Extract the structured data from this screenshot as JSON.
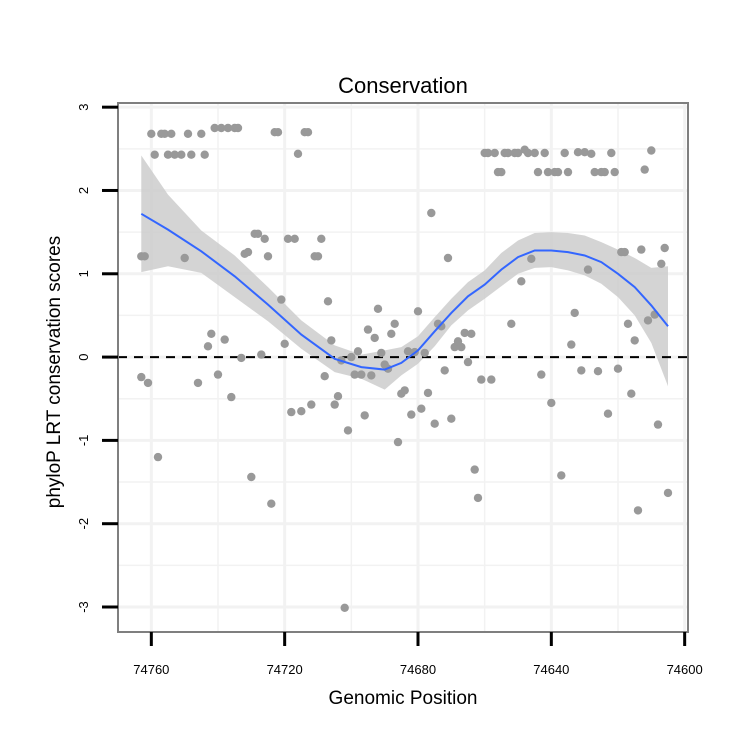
{
  "chart_data": {
    "type": "scatter",
    "title": "Conservation",
    "xlabel": "Genomic Position",
    "ylabel": "phyloP LRT conservation scores",
    "x_reversed": true,
    "xlim": [
      74770,
      74599
    ],
    "ylim": [
      -3.3,
      3.05
    ],
    "x_ticks": [
      74760,
      74720,
      74680,
      74640,
      74600
    ],
    "x_tick_labels": [
      "74760",
      "74720",
      "74680",
      "74640",
      "74600"
    ],
    "y_ticks": [
      3,
      2,
      1,
      0,
      -1,
      -2,
      -3
    ],
    "y_tick_labels": [
      "3",
      "2",
      "1",
      "0",
      "-1",
      "-2",
      "-3"
    ],
    "grid": true,
    "reference_line": {
      "y": 0,
      "style": "dashed"
    },
    "colors": {
      "points": "#999999",
      "smooth_line": "#3366ff",
      "ribbon": "#cccccc",
      "panel_border": "#7f7f7f",
      "grid": "#f2f2f2"
    },
    "points": [
      [
        74763,
        1.21
      ],
      [
        74762,
        1.21
      ],
      [
        74763,
        -0.24
      ],
      [
        74761,
        -0.31
      ],
      [
        74758,
        -1.2
      ],
      [
        74760,
        2.68
      ],
      [
        74759,
        2.43
      ],
      [
        74757,
        2.68
      ],
      [
        74756,
        2.68
      ],
      [
        74755,
        2.43
      ],
      [
        74754,
        2.68
      ],
      [
        74753,
        2.43
      ],
      [
        74751,
        2.43
      ],
      [
        74750,
        1.19
      ],
      [
        74749,
        2.68
      ],
      [
        74748,
        2.43
      ],
      [
        74746,
        -0.31
      ],
      [
        74745,
        2.68
      ],
      [
        74744,
        2.43
      ],
      [
        74743,
        0.13
      ],
      [
        74742,
        0.28
      ],
      [
        74741,
        2.75
      ],
      [
        74740,
        -0.21
      ],
      [
        74739,
        2.75
      ],
      [
        74738,
        0.21
      ],
      [
        74737,
        2.75
      ],
      [
        74736,
        -0.48
      ],
      [
        74735,
        2.75
      ],
      [
        74734,
        2.75
      ],
      [
        74733,
        -0.01
      ],
      [
        74732,
        1.24
      ],
      [
        74731,
        1.26
      ],
      [
        74730,
        -1.44
      ],
      [
        74729,
        1.48
      ],
      [
        74728,
        1.48
      ],
      [
        74727,
        0.03
      ],
      [
        74726,
        1.42
      ],
      [
        74725,
        1.21
      ],
      [
        74724,
        -1.76
      ],
      [
        74723,
        2.7
      ],
      [
        74722,
        2.7
      ],
      [
        74721,
        0.69
      ],
      [
        74720,
        0.16
      ],
      [
        74719,
        1.42
      ],
      [
        74718,
        -0.66
      ],
      [
        74717,
        1.42
      ],
      [
        74716,
        2.44
      ],
      [
        74715,
        -0.65
      ],
      [
        74714,
        2.7
      ],
      [
        74713,
        2.7
      ],
      [
        74712,
        -0.57
      ],
      [
        74711,
        1.21
      ],
      [
        74710,
        1.21
      ],
      [
        74709,
        1.42
      ],
      [
        74708,
        -0.23
      ],
      [
        74707,
        0.67
      ],
      [
        74706,
        0.2
      ],
      [
        74705,
        -0.57
      ],
      [
        74704,
        -0.47
      ],
      [
        74703,
        -0.04
      ],
      [
        74702,
        -3.01
      ],
      [
        74701,
        -0.88
      ],
      [
        74700,
        0.0
      ],
      [
        74699,
        -0.21
      ],
      [
        74698,
        0.07
      ],
      [
        74697,
        -0.21
      ],
      [
        74696,
        -0.7
      ],
      [
        74695,
        0.33
      ],
      [
        74694,
        -0.22
      ],
      [
        74693,
        0.23
      ],
      [
        74692,
        0.58
      ],
      [
        74691,
        0.05
      ],
      [
        74690,
        -0.09
      ],
      [
        74689,
        -0.14
      ],
      [
        74688,
        0.28
      ],
      [
        74687,
        0.4
      ],
      [
        74686,
        -1.02
      ],
      [
        74685,
        -0.44
      ],
      [
        74684,
        -0.4
      ],
      [
        74683,
        0.07
      ],
      [
        74682,
        -0.69
      ],
      [
        74681,
        0.06
      ],
      [
        74680,
        0.55
      ],
      [
        74679,
        -0.62
      ],
      [
        74678,
        0.05
      ],
      [
        74677,
        -0.43
      ],
      [
        74676,
        1.73
      ],
      [
        74675,
        -0.8
      ],
      [
        74674,
        0.4
      ],
      [
        74673,
        0.37
      ],
      [
        74672,
        -0.16
      ],
      [
        74671,
        1.19
      ],
      [
        74670,
        -0.74
      ],
      [
        74669,
        0.12
      ],
      [
        74668,
        0.19
      ],
      [
        74667,
        0.12
      ],
      [
        74666,
        0.29
      ],
      [
        74665,
        -0.06
      ],
      [
        74664,
        0.28
      ],
      [
        74663,
        -1.35
      ],
      [
        74662,
        -1.69
      ],
      [
        74661,
        -0.27
      ],
      [
        74660,
        2.45
      ],
      [
        74659,
        2.45
      ],
      [
        74658,
        -0.27
      ],
      [
        74657,
        2.45
      ],
      [
        74656,
        2.22
      ],
      [
        74655,
        2.22
      ],
      [
        74654,
        2.45
      ],
      [
        74653,
        2.45
      ],
      [
        74652,
        0.4
      ],
      [
        74651,
        2.45
      ],
      [
        74650,
        2.45
      ],
      [
        74649,
        0.91
      ],
      [
        74648,
        2.49
      ],
      [
        74647,
        2.45
      ],
      [
        74646,
        1.18
      ],
      [
        74645,
        2.45
      ],
      [
        74644,
        2.22
      ],
      [
        74643,
        -0.21
      ],
      [
        74642,
        2.45
      ],
      [
        74641,
        2.22
      ],
      [
        74640,
        -0.55
      ],
      [
        74639,
        2.22
      ],
      [
        74638,
        2.22
      ],
      [
        74637,
        -1.42
      ],
      [
        74636,
        2.45
      ],
      [
        74635,
        2.22
      ],
      [
        74634,
        0.15
      ],
      [
        74633,
        0.53
      ],
      [
        74632,
        2.46
      ],
      [
        74631,
        -0.16
      ],
      [
        74630,
        2.46
      ],
      [
        74629,
        1.05
      ],
      [
        74628,
        2.44
      ],
      [
        74627,
        2.22
      ],
      [
        74626,
        -0.17
      ],
      [
        74625,
        2.22
      ],
      [
        74624,
        2.22
      ],
      [
        74623,
        -0.68
      ],
      [
        74622,
        2.45
      ],
      [
        74621,
        2.22
      ],
      [
        74620,
        -0.14
      ],
      [
        74619,
        1.26
      ],
      [
        74618,
        1.26
      ],
      [
        74617,
        0.4
      ],
      [
        74616,
        -0.44
      ],
      [
        74615,
        0.2
      ],
      [
        74614,
        -1.84
      ],
      [
        74613,
        1.29
      ],
      [
        74612,
        2.25
      ],
      [
        74611,
        0.44
      ],
      [
        74610,
        2.48
      ],
      [
        74609,
        0.51
      ],
      [
        74608,
        -0.81
      ],
      [
        74607,
        1.12
      ],
      [
        74606,
        1.31
      ],
      [
        74605,
        -1.63
      ]
    ],
    "smooth_fit": {
      "x": [
        74763,
        74755,
        74745,
        74735,
        74725,
        74715,
        74705,
        74697,
        74690,
        74685,
        74680,
        74675,
        74670,
        74665,
        74660,
        74655,
        74650,
        74645,
        74640,
        74635,
        74630,
        74625,
        74620,
        74615,
        74610,
        74605
      ],
      "y": [
        1.72,
        1.53,
        1.27,
        0.97,
        0.63,
        0.27,
        -0.02,
        -0.12,
        -0.15,
        -0.07,
        0.08,
        0.31,
        0.53,
        0.73,
        0.87,
        1.05,
        1.2,
        1.28,
        1.28,
        1.26,
        1.22,
        1.14,
        1.0,
        0.84,
        0.62,
        0.37
      ],
      "lower": [
        1.02,
        1.09,
        1.01,
        0.72,
        0.43,
        0.1,
        -0.18,
        -0.26,
        -0.39,
        -0.22,
        -0.08,
        0.13,
        0.38,
        0.56,
        0.7,
        0.85,
        1.0,
        1.07,
        1.08,
        1.04,
        0.98,
        0.88,
        0.72,
        0.5,
        0.17,
        -0.35
      ],
      "upper": [
        2.42,
        1.95,
        1.52,
        1.22,
        0.84,
        0.44,
        0.14,
        0.03,
        0.08,
        0.12,
        0.25,
        0.48,
        0.7,
        0.9,
        1.04,
        1.25,
        1.4,
        1.49,
        1.5,
        1.49,
        1.46,
        1.38,
        1.29,
        1.19,
        1.07,
        1.09
      ]
    }
  }
}
